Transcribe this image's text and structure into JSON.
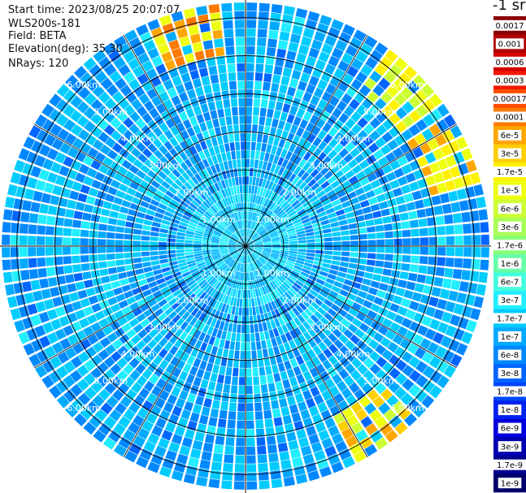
{
  "info": {
    "start_time": "Start time: 2023/08/25 20:07:07",
    "instrument": "WLS200s-181",
    "field": "Field: BETA",
    "elevation": "Elevation(deg): 35.30",
    "nrays": "NRays: 120"
  },
  "chart_data": {
    "type": "heatmap",
    "projection": "polar PPI",
    "field": "BETA",
    "n_rays": 120,
    "range_rings": [
      {
        "label": "1.00km",
        "value": 1.0
      },
      {
        "label": "2.00km",
        "value": 2.0
      },
      {
        "label": "3.00km",
        "value": 3.0
      },
      {
        "label": "4.00km",
        "value": 4.0
      },
      {
        "label": "5.00km",
        "value": 5.0
      },
      {
        "label": "6.00km",
        "value": 6.0
      }
    ],
    "range_max_km": 6.4,
    "colorbar": {
      "title": "-1 sr",
      "labels": [
        "0.0017",
        "0.001",
        "0.0006",
        "0.0003",
        "0.00017",
        "0.0001",
        "6e-5",
        "3e-5",
        "1.7e-5",
        "1e-5",
        "6e-6",
        "3e-6",
        "1.7e-6",
        "1e-6",
        "6e-7",
        "3e-7",
        "1.7e-7",
        "1e-7",
        "6e-8",
        "3e-8",
        "1.7e-8",
        "1e-8",
        "6e-9",
        "3e-9",
        "1.7e-9",
        "1e-9"
      ],
      "colors": [
        "#8b0000",
        "#b00000",
        "#d40000",
        "#f21a00",
        "#ff4d00",
        "#ff7a00",
        "#ffa600",
        "#ffcf00",
        "#fff200",
        "#eeff10",
        "#ccff33",
        "#a8ff55",
        "#88ff77",
        "#66ffaa",
        "#44ffdd",
        "#22eeff",
        "#00ccff",
        "#00aaff",
        "#0088ff",
        "#0066ff",
        "#0044ff",
        "#0022ee",
        "#0000dd",
        "#0000b0",
        "#000090",
        "#00006a"
      ]
    },
    "typical_value": "1e-7",
    "high_value_regions": [
      {
        "sector": "north-northwest",
        "range": "far",
        "values": [
          "1e-5",
          "6e-5",
          "0.0001"
        ]
      },
      {
        "sector": "northeast",
        "range": "far",
        "values": [
          "1.7e-5",
          "1e-5",
          "6e-6"
        ]
      },
      {
        "sector": "east-northeast",
        "range": "far",
        "values": [
          "1e-5",
          "6e-5",
          "1.7e-5"
        ]
      },
      {
        "sector": "south-southeast",
        "range": "far",
        "values": [
          "1e-5",
          "6e-6",
          "3e-5",
          "6e-5"
        ]
      }
    ]
  }
}
